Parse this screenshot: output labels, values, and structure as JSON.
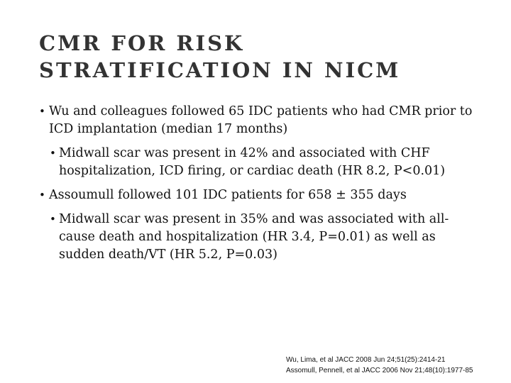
{
  "title": {
    "lines": [
      "CMR FOR RISK",
      "STRATIFICATION IN NICM"
    ]
  },
  "bullets": [
    {
      "level": 1,
      "text": "Wu and colleagues followed 65 IDC patients who had CMR prior to ICD implantation (median 17 months)"
    },
    {
      "level": 2,
      "text": "Midwall scar was present in 42% and associated with CHF hospitalization, ICD firing, or cardiac death (HR 8.2, P<0.01)"
    },
    {
      "level": 1,
      "text": "Assoumull followed 101 IDC patients for 658 ± 355 days"
    },
    {
      "level": 2,
      "text": "Midwall scar was present in 35% and was associated with all-cause death and hospitalization (HR 3.4, P=0.01) as well as sudden death/VT (HR 5.2, P=0.03)"
    }
  ],
  "references": [
    "Wu, Lima, et al JACC 2008 Jun 24;51(25):2414-21",
    "Assomull, Pennell, et al JACC 2006 Nov 21;48(10):1977-85"
  ]
}
